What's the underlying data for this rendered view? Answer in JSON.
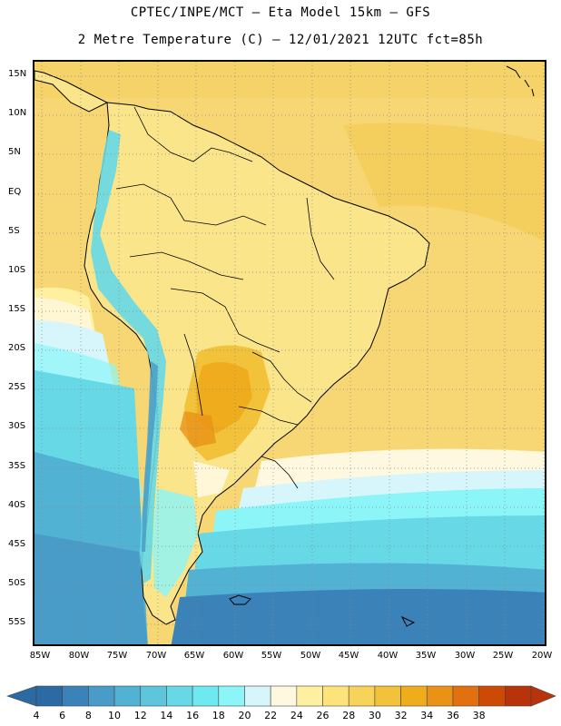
{
  "header": {
    "title_line1": "CPTEC/INPE/MCT –  Eta Model 15km – GFS",
    "title_line2": "2 Metre Temperature (C) – 12/01/2021 12UTC fct=85h"
  },
  "map": {
    "lat_ticks": [
      "15N",
      "10N",
      "5N",
      "EQ",
      "5S",
      "10S",
      "15S",
      "20S",
      "25S",
      "30S",
      "35S",
      "40S",
      "45S",
      "50S",
      "55S"
    ],
    "lon_ticks": [
      "85W",
      "80W",
      "75W",
      "70W",
      "65W",
      "60W",
      "55W",
      "50W",
      "45W",
      "40W",
      "35W",
      "30W",
      "25W",
      "20W"
    ],
    "ocean_color_warm": "#f7d774",
    "land_outline_color": "#000000"
  },
  "legend": {
    "values": [
      "4",
      "6",
      "8",
      "10",
      "12",
      "14",
      "16",
      "18",
      "20",
      "22",
      "24",
      "26",
      "28",
      "30",
      "32",
      "34",
      "36",
      "38"
    ],
    "colors": [
      "#2c6aa3",
      "#3a82b8",
      "#4a9cc8",
      "#52b2d3",
      "#5ec5dc",
      "#66d8e6",
      "#6fe9f0",
      "#8bf5f7",
      "#d6f6fb",
      "#fff8e0",
      "#fdf0a0",
      "#fde47a",
      "#f8d35a",
      "#f2c23b",
      "#efad1e",
      "#ea9215",
      "#e2700e",
      "#cc4a06",
      "#b8320a"
    ],
    "left_arrow_color": "#2c6aa3",
    "right_arrow_color": "#b8320a"
  }
}
